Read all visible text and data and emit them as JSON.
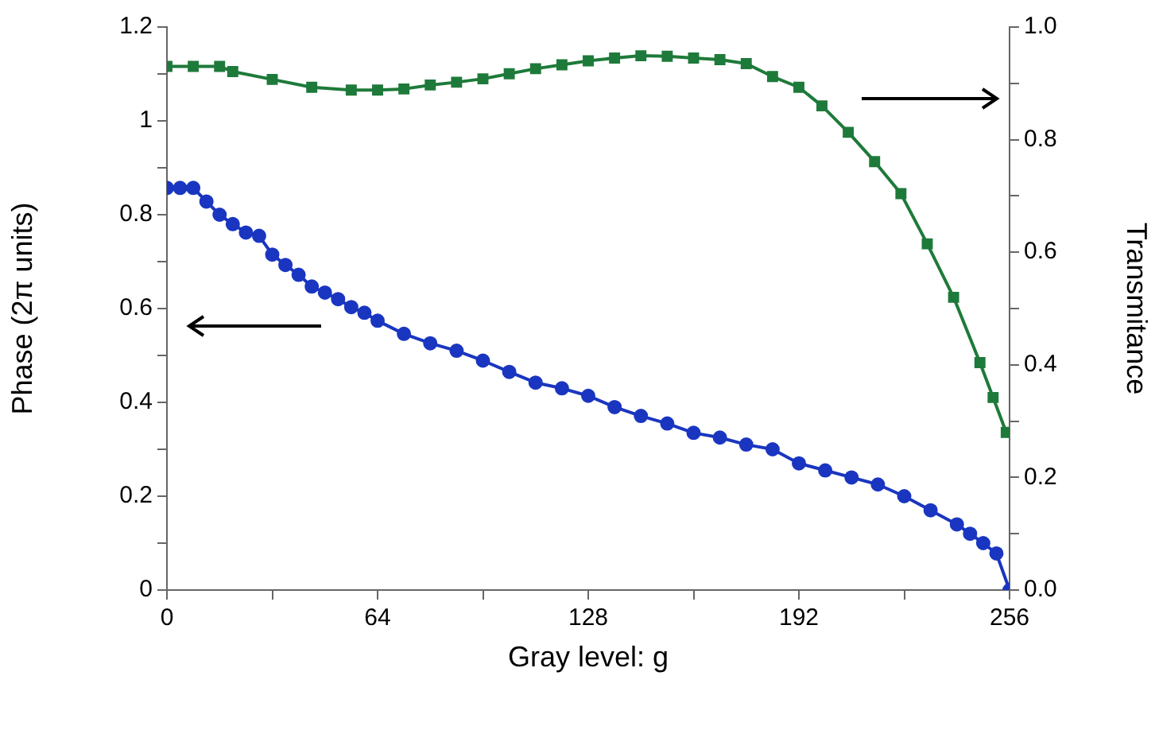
{
  "chart_data": {
    "type": "line",
    "xlabel": "Gray level: g",
    "ylabel": "Phase (2π units)",
    "y2label": "Transmitance",
    "xlim": [
      0,
      256
    ],
    "xticks": [
      0,
      {
        "value": 32,
        "label": null
      },
      64,
      {
        "value": 96,
        "label": null
      },
      128,
      {
        "value": 160,
        "label": null
      },
      192,
      {
        "value": 224,
        "label": null
      },
      256
    ],
    "ylim": [
      0,
      1.2
    ],
    "yticks": [
      0,
      {
        "value": 0.1,
        "label": null
      },
      0.2,
      {
        "value": 0.3,
        "label": null
      },
      0.4,
      {
        "value": 0.5,
        "label": null
      },
      0.6,
      {
        "value": 0.7,
        "label": null
      },
      0.8,
      {
        "value": 0.9,
        "label": null
      },
      1,
      {
        "value": 1.1,
        "label": null
      },
      1.2
    ],
    "y2lim": [
      0,
      1
    ],
    "y2ticks": [
      {
        "value": 0,
        "label": "0.0"
      },
      {
        "value": 0.1,
        "label": null
      },
      {
        "value": 0.2,
        "label": "0.2"
      },
      {
        "value": 0.3,
        "label": null
      },
      {
        "value": 0.4,
        "label": "0.4"
      },
      {
        "value": 0.5,
        "label": null
      },
      {
        "value": 0.6,
        "label": "0.6"
      },
      {
        "value": 0.7,
        "label": null
      },
      {
        "value": 0.8,
        "label": "0.8"
      },
      {
        "value": 0.9,
        "label": null
      },
      {
        "value": 1,
        "label": "1.0"
      }
    ],
    "grid": false,
    "legend": false,
    "series": [
      {
        "color": "#1a36c0",
        "marker": "circle",
        "x": [
          0,
          4,
          8,
          12,
          16,
          20,
          24,
          28,
          32,
          36,
          40,
          44,
          48,
          52,
          56,
          60,
          64,
          72,
          80,
          88,
          96,
          104,
          112,
          120,
          128,
          136,
          144,
          152,
          160,
          168,
          176,
          184,
          192,
          200,
          208,
          216,
          224,
          232,
          240,
          244,
          248,
          252,
          256
        ],
        "values": [
          0.857,
          0.857,
          0.857,
          0.828,
          0.8,
          0.78,
          0.762,
          0.755,
          0.715,
          0.693,
          0.672,
          0.647,
          0.634,
          0.62,
          0.603,
          0.591,
          0.574,
          0.546,
          0.526,
          0.51,
          0.489,
          0.465,
          0.442,
          0.43,
          0.414,
          0.39,
          0.371,
          0.355,
          0.335,
          0.325,
          0.31,
          0.3,
          0.27,
          0.255,
          0.24,
          0.225,
          0.2,
          0.17,
          0.14,
          0.12,
          0.1,
          0.078,
          0
        ]
      },
      {
        "color": "#1e7a3a",
        "marker": "square",
        "axis": "y2",
        "x": [
          0,
          8,
          16,
          20,
          32,
          44,
          56,
          64,
          72,
          80,
          88,
          96,
          104,
          112,
          120,
          128,
          136,
          144,
          152,
          160,
          168,
          176,
          184,
          192,
          199,
          207,
          215,
          223,
          231,
          239,
          247,
          251,
          255
        ],
        "values": [
          0.93,
          0.93,
          0.93,
          0.921,
          0.907,
          0.893,
          0.888,
          0.888,
          0.89,
          0.897,
          0.902,
          0.908,
          0.917,
          0.926,
          0.933,
          0.94,
          0.945,
          0.949,
          0.948,
          0.945,
          0.942,
          0.935,
          0.912,
          0.893,
          0.86,
          0.813,
          0.761,
          0.704,
          0.615,
          0.52,
          0.404,
          0.342,
          0.28
        ]
      }
    ]
  }
}
